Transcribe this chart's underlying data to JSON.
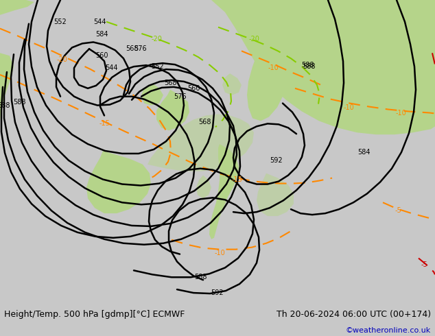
{
  "title_left": "Height/Temp. 500 hPa [gdmp][°C] ECMWF",
  "title_right": "Th 20-06-2024 06:00 UTC (00+174)",
  "watermark": "©weatheronline.co.uk",
  "bg_color": "#c8c8c8",
  "land_green": "#b5d48a",
  "black": "#000000",
  "orange": "#ff8800",
  "green_temp": "#88cc00",
  "red": "#cc0000",
  "blue_wm": "#0000bb",
  "footer_fs": 9,
  "wm_fs": 8
}
